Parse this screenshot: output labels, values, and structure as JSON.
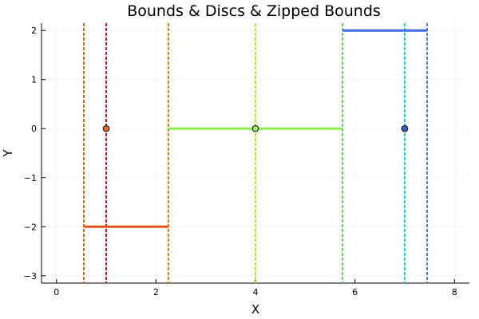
{
  "chart_data": {
    "type": "line",
    "title": "Bounds & Discs & Zipped Bounds",
    "xlabel": "X",
    "ylabel": "Y",
    "xlim": [
      -0.3,
      8.3
    ],
    "ylim": [
      -3.15,
      2.15
    ],
    "xticks": [
      0,
      2,
      4,
      6,
      8
    ],
    "yticks": [
      -3,
      -2,
      -1,
      0,
      1,
      2
    ],
    "grid": true,
    "legend": "none",
    "frame": "left-bottom",
    "segments": [
      {
        "x": [
          0.55,
          2.25
        ],
        "y": [
          -2,
          -2
        ],
        "color": "#e8511a",
        "width": 3
      },
      {
        "x": [
          2.25,
          5.75
        ],
        "y": [
          0,
          0
        ],
        "color": "#8cf04c",
        "width": 3
      },
      {
        "x": [
          5.75,
          7.45
        ],
        "y": [
          2,
          2
        ],
        "color": "#4169e1",
        "width": 3
      }
    ],
    "vlines": [
      {
        "x": 0.55,
        "color": "#d2691e"
      },
      {
        "x": 1.0,
        "color": "#b22222"
      },
      {
        "x": 2.25,
        "color": "#c8860a"
      },
      {
        "x": 4.0,
        "color": "#d4d42a"
      },
      {
        "x": 5.75,
        "color": "#66cc66"
      },
      {
        "x": 7.0,
        "color": "#1ec8dc"
      },
      {
        "x": 7.45,
        "color": "#4a7fe0"
      }
    ],
    "points": [
      {
        "x": 1,
        "y": 0,
        "fill": "#e06c2c"
      },
      {
        "x": 4,
        "y": 0,
        "fill": "#a8e060"
      },
      {
        "x": 7,
        "y": 0,
        "fill": "#3f5fb5"
      }
    ]
  }
}
